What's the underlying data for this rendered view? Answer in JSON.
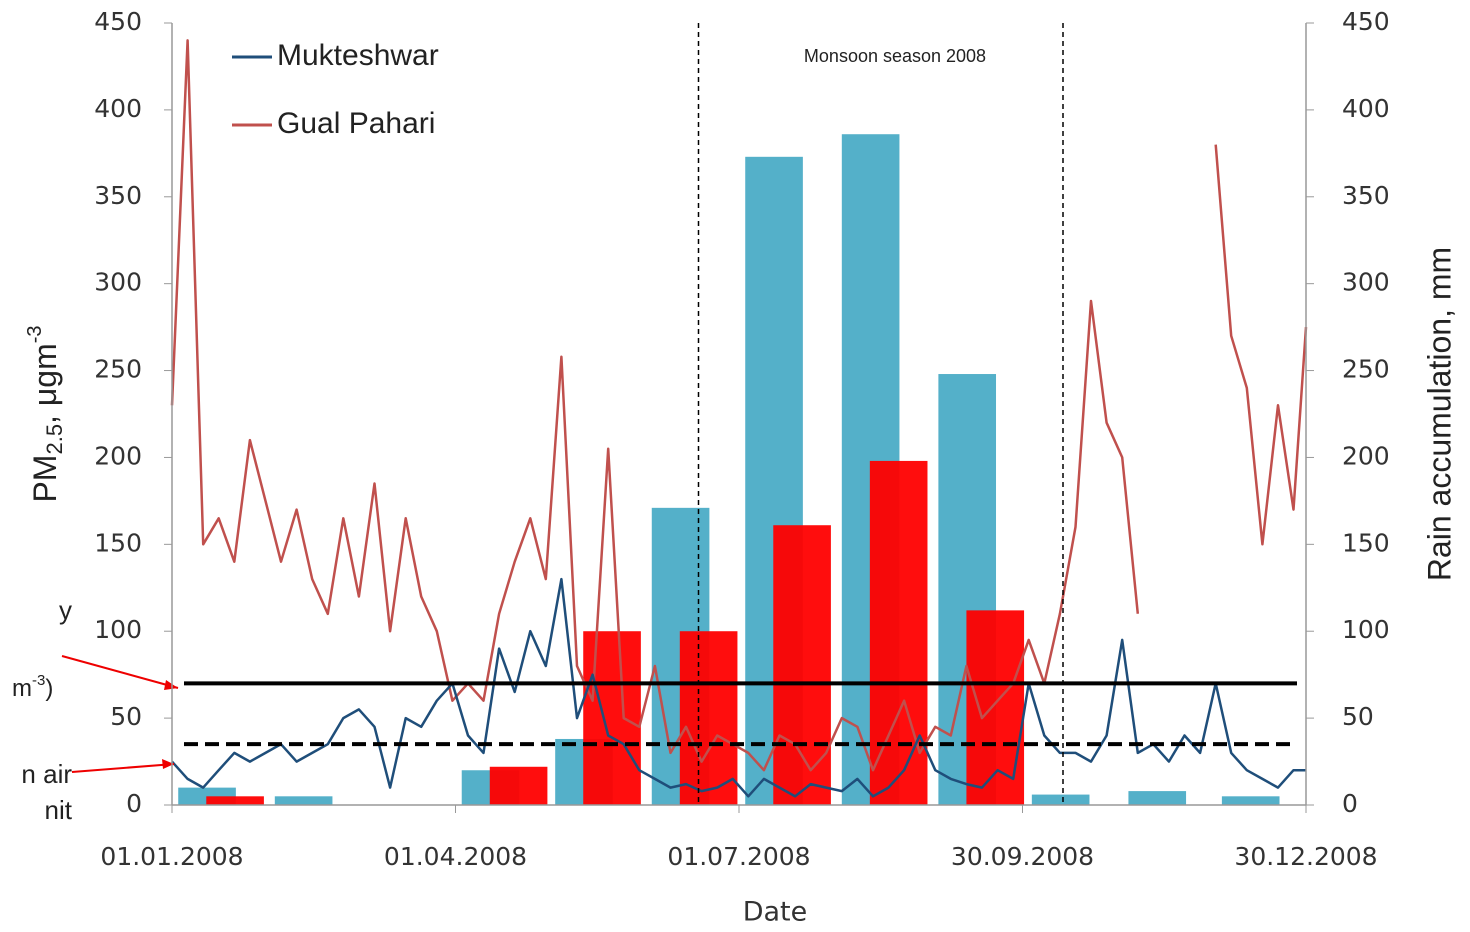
{
  "chart_data": {
    "type": "line",
    "annotation": "Monsoon season 2008",
    "x_label": "Date",
    "y_label": {
      "base": "PM",
      "sub": "2.5",
      "rest": ", μgm",
      "sup": "-3"
    },
    "y2_label": "Rain accumulation, mm",
    "side_notes": {
      "l1": "y",
      "l2": "m",
      "l2_sup": "-3",
      "l2_end": ")",
      "l3": "n air",
      "l4": "nit"
    },
    "xlim": [
      "01.01.2008",
      "30.12.2008"
    ],
    "xticks": [
      "01.01.2008",
      "01.04.2008",
      "01.07.2008",
      "30.09.2008",
      "30.12.2008"
    ],
    "ylim": [
      0,
      450
    ],
    "yticks": [
      0,
      50,
      100,
      150,
      200,
      250,
      300,
      350,
      400,
      450
    ],
    "y2lim": [
      0,
      450
    ],
    "y2ticks": [
      0,
      50,
      100,
      150,
      200,
      250,
      300,
      350,
      400,
      450
    ],
    "x": [
      "01.01.2008",
      "06.01.2008",
      "11.01.2008",
      "16.01.2008",
      "21.01.2008",
      "26.01.2008",
      "31.01.2008",
      "05.02.2008",
      "10.02.2008",
      "15.02.2008",
      "20.02.2008",
      "25.02.2008",
      "01.03.2008",
      "06.03.2008",
      "11.03.2008",
      "16.03.2008",
      "21.03.2008",
      "26.03.2008",
      "31.03.2008",
      "05.04.2008",
      "10.04.2008",
      "15.04.2008",
      "20.04.2008",
      "25.04.2008",
      "30.04.2008",
      "05.05.2008",
      "10.05.2008",
      "15.05.2008",
      "20.05.2008",
      "25.05.2008",
      "30.05.2008",
      "04.06.2008",
      "09.06.2008",
      "14.06.2008",
      "19.06.2008",
      "24.06.2008",
      "29.06.2008",
      "04.07.2008",
      "09.07.2008",
      "14.07.2008",
      "19.07.2008",
      "24.07.2008",
      "29.07.2008",
      "03.08.2008",
      "08.08.2008",
      "13.08.2008",
      "18.08.2008",
      "23.08.2008",
      "28.08.2008",
      "02.09.2008",
      "07.09.2008",
      "12.09.2008",
      "17.09.2008",
      "22.09.2008",
      "27.09.2008",
      "02.10.2008",
      "07.10.2008",
      "12.10.2008",
      "17.10.2008",
      "22.10.2008",
      "27.10.2008",
      "01.11.2008",
      "06.11.2008",
      "11.11.2008",
      "16.11.2008",
      "21.11.2008",
      "26.11.2008",
      "01.12.2008",
      "06.12.2008",
      "11.12.2008",
      "16.12.2008",
      "21.12.2008",
      "26.12.2008",
      "30.12.2008"
    ],
    "series": [
      {
        "name": "Mukteshwar",
        "color": "#1f4e7a",
        "values": [
          25,
          15,
          10,
          20,
          30,
          25,
          30,
          35,
          25,
          30,
          35,
          50,
          55,
          45,
          10,
          50,
          45,
          60,
          70,
          40,
          30,
          90,
          65,
          100,
          80,
          130,
          50,
          75,
          40,
          35,
          20,
          15,
          10,
          12,
          8,
          10,
          15,
          5,
          15,
          10,
          5,
          12,
          10,
          8,
          15,
          5,
          10,
          20,
          40,
          20,
          15,
          12,
          10,
          20,
          15,
          70,
          40,
          30,
          30,
          25,
          40,
          95,
          30,
          35,
          25,
          40,
          30,
          70,
          30,
          20,
          15,
          10,
          20,
          20
        ]
      },
      {
        "name": "Gual Pahari",
        "color": "#c0504d",
        "values": [
          230,
          440,
          150,
          165,
          140,
          210,
          175,
          140,
          170,
          130,
          110,
          165,
          120,
          185,
          100,
          165,
          120,
          100,
          60,
          70,
          60,
          110,
          140,
          165,
          130,
          258,
          80,
          60,
          205,
          50,
          45,
          80,
          30,
          45,
          25,
          40,
          35,
          30,
          20,
          40,
          35,
          20,
          30,
          50,
          45,
          20,
          40,
          60,
          30,
          45,
          40,
          80,
          50,
          60,
          70,
          95,
          70,
          110,
          160,
          290,
          220,
          200,
          110,
          null,
          null,
          null,
          null,
          380,
          270,
          240,
          150,
          230,
          170,
          275
        ]
      }
    ],
    "bars": {
      "x": [
        "01.01.2008",
        "01.02.2008",
        "01.03.2008",
        "01.04.2008",
        "01.05.2008",
        "01.06.2008",
        "01.07.2008",
        "01.08.2008",
        "01.09.2008",
        "01.10.2008",
        "01.11.2008",
        "01.12.2008"
      ],
      "groups": [
        {
          "color": "#4bacc6",
          "axis": "y2",
          "values": [
            10,
            5,
            null,
            20,
            38,
            171,
            373,
            386,
            248,
            6,
            8,
            5
          ]
        },
        {
          "color": "#ff0000",
          "axis": "y2",
          "values": [
            5,
            null,
            null,
            22,
            100,
            100,
            161,
            198,
            112,
            null,
            null,
            null
          ]
        }
      ]
    },
    "reference_lines": [
      {
        "value": 70,
        "color": "#000000",
        "style": "solid"
      },
      {
        "value": 35,
        "color": "#000000",
        "style": "dashed"
      }
    ],
    "monsoon_lines": [
      "18.06.2008",
      "13.10.2008"
    ],
    "legend": "upper left"
  }
}
